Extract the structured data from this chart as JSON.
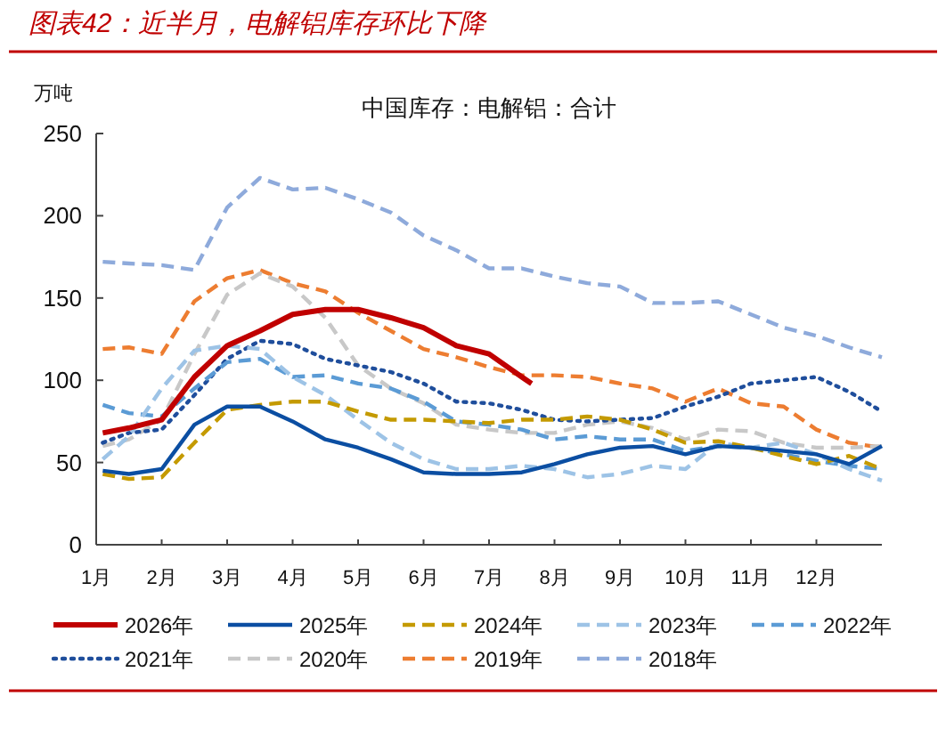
{
  "chart_data": {
    "type": "line",
    "title": "图表42：近半月，电解铝库存环比下降",
    "subtitle": "中国库存：电解铝：合计",
    "ylabel": "万吨",
    "x": [
      1.1,
      1.5,
      2.0,
      2.5,
      3.0,
      3.5,
      4.0,
      4.5,
      5.0,
      5.5,
      6.0,
      6.5,
      7.0,
      7.5,
      8.0,
      8.5,
      9.0,
      9.5,
      10.0,
      10.5,
      11.0,
      11.5,
      12.0,
      12.5,
      13.0
    ],
    "xlim": [
      1,
      13
    ],
    "ylim": [
      0,
      250
    ],
    "xticks": [
      {
        "value": 1,
        "label": "1月"
      },
      {
        "value": 2,
        "label": "2月"
      },
      {
        "value": 3,
        "label": "3月"
      },
      {
        "value": 4,
        "label": "4月"
      },
      {
        "value": 5,
        "label": "5月"
      },
      {
        "value": 6,
        "label": "6月"
      },
      {
        "value": 7,
        "label": "7月"
      },
      {
        "value": 8,
        "label": "8月"
      },
      {
        "value": 9,
        "label": "9月"
      },
      {
        "value": 10,
        "label": "10月"
      },
      {
        "value": 11,
        "label": "11月"
      },
      {
        "value": 12,
        "label": "12月"
      }
    ],
    "yticks": [
      0,
      50,
      100,
      150,
      200,
      250
    ],
    "grid": false,
    "legend": "bottom",
    "marker": "none",
    "series": [
      {
        "name": "2026年",
        "color": "#c00000",
        "line_style": "solid",
        "x": [
          1.1,
          1.5,
          2.0,
          2.5,
          3.0,
          3.5,
          4.0,
          4.5,
          5.0,
          5.5,
          6.0,
          6.5,
          7.0,
          7.5,
          7.65
        ],
        "values": [
          68,
          71,
          76,
          102,
          121,
          130,
          140,
          143,
          143,
          138,
          132,
          121,
          116,
          102,
          98
        ]
      },
      {
        "name": "2025年",
        "color": "#0b4ea2",
        "line_style": "solid",
        "values": [
          45,
          43,
          46,
          73,
          84,
          84,
          75,
          64,
          59,
          52,
          44,
          43,
          43,
          44,
          49,
          55,
          59,
          60,
          55,
          60,
          59,
          57,
          55,
          49,
          60
        ]
      },
      {
        "name": "2024年",
        "color": "#c49a00",
        "line_style": "dashed",
        "values": [
          43,
          40,
          41,
          62,
          82,
          85,
          87,
          87,
          81,
          76,
          76,
          75,
          74,
          76,
          76,
          78,
          76,
          70,
          62,
          63,
          59,
          54,
          49,
          54,
          46
        ]
      },
      {
        "name": "2023年",
        "color": "#9dc3e6",
        "line_style": "dashed",
        "values": [
          52,
          66,
          95,
          118,
          121,
          119,
          102,
          91,
          76,
          62,
          52,
          46,
          46,
          48,
          46,
          41,
          43,
          48,
          46,
          62,
          59,
          62,
          55,
          46,
          39
        ]
      },
      {
        "name": "2022年",
        "color": "#5b9bd5",
        "line_style": "dashed",
        "values": [
          85,
          80,
          78,
          95,
          111,
          113,
          102,
          103,
          98,
          95,
          87,
          75,
          73,
          70,
          64,
          66,
          64,
          64,
          57,
          60,
          59,
          55,
          51,
          48,
          46
        ]
      },
      {
        "name": "2021年",
        "color": "#1f4e9c",
        "line_style": "dotted",
        "values": [
          62,
          68,
          70,
          91,
          113,
          124,
          122,
          113,
          109,
          105,
          98,
          87,
          86,
          82,
          76,
          75,
          76,
          77,
          84,
          90,
          98,
          100,
          102,
          93,
          81
        ]
      },
      {
        "name": "2020年",
        "color": "#c8c8c8",
        "line_style": "dashed",
        "values": [
          60,
          64,
          76,
          116,
          152,
          165,
          157,
          138,
          109,
          95,
          86,
          73,
          70,
          68,
          68,
          73,
          75,
          71,
          64,
          70,
          69,
          62,
          59,
          59,
          60
        ]
      },
      {
        "name": "2019年",
        "color": "#ed7d31",
        "line_style": "dashed",
        "values": [
          119,
          120,
          116,
          148,
          162,
          167,
          159,
          154,
          141,
          130,
          119,
          114,
          108,
          103,
          103,
          102,
          98,
          95,
          87,
          95,
          86,
          84,
          70,
          62,
          59
        ]
      },
      {
        "name": "2018年",
        "color": "#8eaadb",
        "line_style": "dashed",
        "values": [
          172,
          171,
          170,
          167,
          205,
          223,
          216,
          217,
          210,
          202,
          188,
          179,
          168,
          168,
          163,
          159,
          157,
          147,
          147,
          148,
          140,
          132,
          127,
          120,
          114
        ]
      }
    ]
  }
}
